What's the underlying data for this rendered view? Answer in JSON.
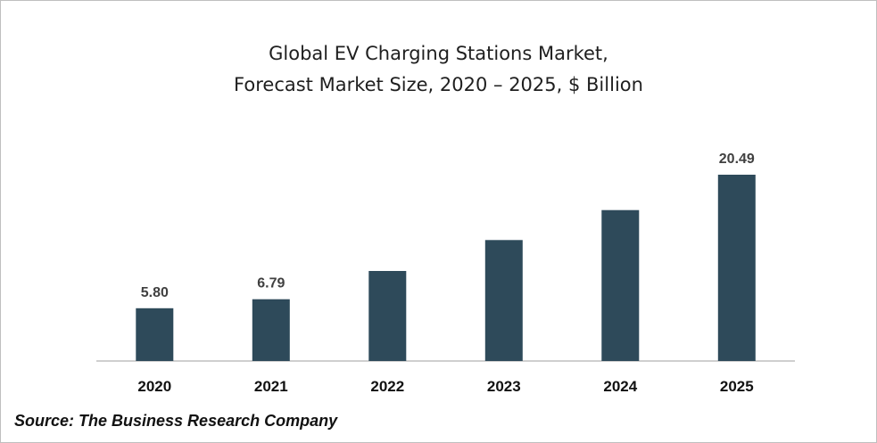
{
  "chart_data": {
    "type": "bar",
    "title_line1": "Global EV Charging Stations Market,",
    "title_line2": "Forecast Market Size, 2020 – 2025, $ Billion",
    "categories": [
      "2020",
      "2021",
      "2022",
      "2023",
      "2024",
      "2025"
    ],
    "values": [
      5.8,
      6.79,
      9.9,
      13.3,
      16.6,
      20.49
    ],
    "data_labels": [
      "5.80",
      "6.79",
      "",
      "",
      "",
      "20.49"
    ],
    "xlabel": "",
    "ylabel": "",
    "ylim": [
      0,
      20.49
    ],
    "grid": false,
    "legend": "none",
    "bar_color": "#2e4a5a",
    "axis_color": "#bfbfbf",
    "label_color": "#404040"
  },
  "source": "Source: The Business Research Company"
}
